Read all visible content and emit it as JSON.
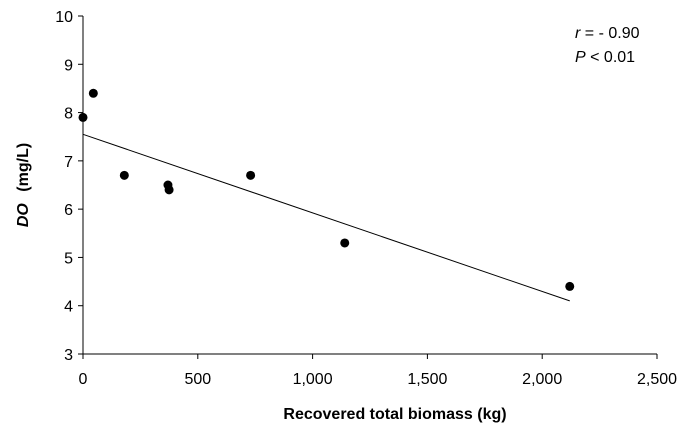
{
  "chart_data": {
    "type": "scatter",
    "xlabel": "Recovered total biomass (kg)",
    "ylabel": {
      "italic": "DO",
      "rest": "(mg/L)"
    },
    "xlim": [
      0,
      2500
    ],
    "ylim": [
      3,
      10
    ],
    "xticks": [
      {
        "value": 0,
        "label": "0"
      },
      {
        "value": 500,
        "label": "500"
      },
      {
        "value": 1000,
        "label": "1,000"
      },
      {
        "value": 1500,
        "label": "1,500"
      },
      {
        "value": 2000,
        "label": "2,000"
      },
      {
        "value": 2500,
        "label": "2,500"
      }
    ],
    "yticks": [
      {
        "value": 3,
        "label": "3"
      },
      {
        "value": 4,
        "label": "4"
      },
      {
        "value": 5,
        "label": "5"
      },
      {
        "value": 6,
        "label": "6"
      },
      {
        "value": 7,
        "label": "7"
      },
      {
        "value": 8,
        "label": "8"
      },
      {
        "value": 9,
        "label": "9"
      },
      {
        "value": 10,
        "label": "10"
      }
    ],
    "points": [
      {
        "x": 0,
        "y": 7.9
      },
      {
        "x": 45,
        "y": 8.4
      },
      {
        "x": 180,
        "y": 6.7
      },
      {
        "x": 370,
        "y": 6.5
      },
      {
        "x": 375,
        "y": 6.4
      },
      {
        "x": 730,
        "y": 6.7
      },
      {
        "x": 1140,
        "y": 5.3
      },
      {
        "x": 2120,
        "y": 4.4
      }
    ],
    "trendline": {
      "x": [
        0,
        2120
      ],
      "y": [
        7.55,
        4.1
      ]
    },
    "annotations": [
      {
        "italic": "r",
        "text": " = - 0.90"
      },
      {
        "italic": "P",
        "text": " < 0.01"
      }
    ],
    "grid": false,
    "legend": "none"
  }
}
